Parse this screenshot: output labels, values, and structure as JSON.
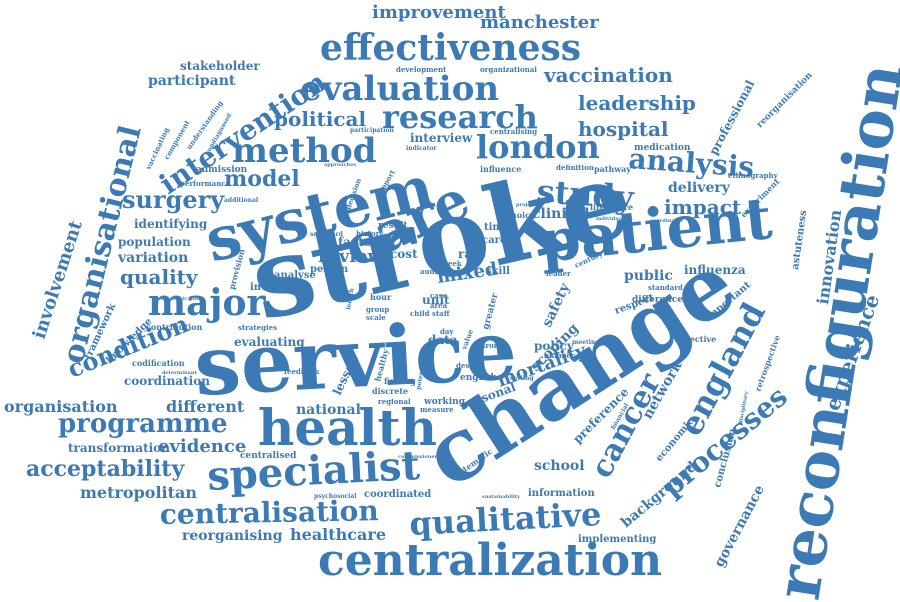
{
  "cloud": {
    "text_color": "#3c7ab5",
    "background": "#ffffff",
    "words": [
      {
        "text": "stroke",
        "size": 108
      },
      {
        "text": "change",
        "size": 86
      },
      {
        "text": "service",
        "size": 84
      },
      {
        "text": "reconfiguration",
        "size": 64
      },
      {
        "text": "system",
        "size": 60
      },
      {
        "text": "patient",
        "size": 60
      },
      {
        "text": "care",
        "size": 58
      },
      {
        "text": "health",
        "size": 50
      },
      {
        "text": "centralization",
        "size": 46
      },
      {
        "text": "specialist",
        "size": 42
      },
      {
        "text": "effectiveness",
        "size": 36
      },
      {
        "text": "evaluation",
        "size": 36
      },
      {
        "text": "research",
        "size": 34
      },
      {
        "text": "method",
        "size": 34
      },
      {
        "text": "london",
        "size": 34
      },
      {
        "text": "analysis",
        "size": 32
      },
      {
        "text": "study",
        "size": 34
      },
      {
        "text": "qualitative",
        "size": 34
      },
      {
        "text": "centralisation",
        "size": 32
      },
      {
        "text": "major",
        "size": 38
      },
      {
        "text": "england",
        "size": 34
      },
      {
        "text": "cancer",
        "size": 32
      },
      {
        "text": "processes",
        "size": 30
      },
      {
        "text": "organisational",
        "size": 32
      },
      {
        "text": "intervention",
        "size": 28
      },
      {
        "text": "programme",
        "size": 28
      },
      {
        "text": "condition",
        "size": 26
      },
      {
        "text": "surgery",
        "size": 26
      },
      {
        "text": "acceptability",
        "size": 22
      },
      {
        "text": "quality",
        "size": 20
      },
      {
        "text": "model",
        "size": 22
      },
      {
        "text": "impact",
        "size": 20
      },
      {
        "text": "political",
        "size": 20
      },
      {
        "text": "vaccination",
        "size": 20
      },
      {
        "text": "leadership",
        "size": 20
      },
      {
        "text": "hospital",
        "size": 20
      },
      {
        "text": "improvement",
        "size": 18
      },
      {
        "text": "manchester",
        "size": 18
      },
      {
        "text": "mortality",
        "size": 18
      },
      {
        "text": "experience",
        "size": 20
      },
      {
        "text": "innovation",
        "size": 16
      },
      {
        "text": "involvement",
        "size": 18
      },
      {
        "text": "evidence",
        "size": 18
      },
      {
        "text": "metropolitan",
        "size": 16
      },
      {
        "text": "healthcare",
        "size": 16
      },
      {
        "text": "organisation",
        "size": 16
      },
      {
        "text": "different",
        "size": 16
      },
      {
        "text": "review",
        "size": 18
      },
      {
        "text": "mixed",
        "size": 18
      },
      {
        "text": "public",
        "size": 14
      },
      {
        "text": "network",
        "size": 14
      },
      {
        "text": "governance",
        "size": 14
      },
      {
        "text": "background",
        "size": 14
      },
      {
        "text": "preference",
        "size": 12
      },
      {
        "text": "school",
        "size": 14
      },
      {
        "text": "influenza",
        "size": 12
      },
      {
        "text": "professional",
        "size": 12
      },
      {
        "text": "delivery",
        "size": 14
      },
      {
        "text": "clinical",
        "size": 14
      },
      {
        "text": "variation",
        "size": 14
      },
      {
        "text": "population",
        "size": 12
      },
      {
        "text": "identifying",
        "size": 12
      },
      {
        "text": "participant",
        "size": 14
      },
      {
        "text": "stakeholder",
        "size": 12
      },
      {
        "text": "reorganising",
        "size": 14
      },
      {
        "text": "transformation",
        "size": 12
      },
      {
        "text": "national",
        "size": 14
      },
      {
        "text": "lesson",
        "size": 14
      },
      {
        "text": "coordination",
        "size": 12
      },
      {
        "text": "evaluating",
        "size": 12
      },
      {
        "text": "safety",
        "size": 14
      },
      {
        "text": "scoping",
        "size": 14
      },
      {
        "text": "policy",
        "size": 12
      },
      {
        "text": "seasonal",
        "size": 12
      },
      {
        "text": "interview",
        "size": 12
      },
      {
        "text": "factor",
        "size": 12
      },
      {
        "text": "cost",
        "size": 12
      },
      {
        "text": "rare",
        "size": 12
      },
      {
        "text": "unit",
        "size": 12
      },
      {
        "text": "data",
        "size": 12
      },
      {
        "text": "person",
        "size": 10
      },
      {
        "text": "analyse",
        "size": 10
      },
      {
        "text": "involved",
        "size": 10
      },
      {
        "text": "knowledge",
        "size": 10
      },
      {
        "text": "framework",
        "size": 10
      },
      {
        "text": "medication",
        "size": 9
      },
      {
        "text": "admission",
        "size": 9
      },
      {
        "text": "respect",
        "size": 10
      },
      {
        "text": "astuteness",
        "size": 10
      },
      {
        "text": "important",
        "size": 10
      },
      {
        "text": "conclusion",
        "size": 10
      },
      {
        "text": "economic",
        "size": 10
      },
      {
        "text": "implementing",
        "size": 10
      },
      {
        "text": "coordinated",
        "size": 10
      },
      {
        "text": "information",
        "size": 10
      },
      {
        "text": "working",
        "size": 9
      },
      {
        "text": "english",
        "size": 9
      },
      {
        "text": "centralised",
        "size": 9
      },
      {
        "text": "codification",
        "size": 8
      },
      {
        "text": "contribution",
        "size": 8
      },
      {
        "text": "experiment",
        "size": 8
      },
      {
        "text": "ethnography",
        "size": 7
      },
      {
        "text": "retrospective",
        "size": 8
      },
      {
        "text": "reorganisation",
        "size": 9
      },
      {
        "text": "influence",
        "size": 8
      },
      {
        "text": "pathway",
        "size": 8
      },
      {
        "text": "definition",
        "size": 7
      },
      {
        "text": "literature",
        "size": 8
      },
      {
        "text": "choice",
        "size": 8
      },
      {
        "text": "carer",
        "size": 10
      },
      {
        "text": "skill",
        "size": 10
      },
      {
        "text": "time",
        "size": 10
      },
      {
        "text": "difference",
        "size": 9
      },
      {
        "text": "objective",
        "size": 8
      },
      {
        "text": "feedback",
        "size": 7
      },
      {
        "text": "strategies",
        "size": 7
      },
      {
        "text": "systematic",
        "size": 8
      },
      {
        "text": "performance",
        "size": 7
      },
      {
        "text": "component",
        "size": 7
      },
      {
        "text": "understanding",
        "size": 7
      },
      {
        "text": "development",
        "size": 7
      },
      {
        "text": "organizational",
        "size": 7
      },
      {
        "text": "participation",
        "size": 6
      },
      {
        "text": "indicator",
        "size": 6
      },
      {
        "text": "centralising",
        "size": 7
      },
      {
        "text": "finding",
        "size": 8
      },
      {
        "text": "discrete",
        "size": 8
      },
      {
        "text": "measure",
        "size": 7
      },
      {
        "text": "regional",
        "size": 7
      },
      {
        "text": "chronic",
        "size": 7
      },
      {
        "text": "standard",
        "size": 7
      },
      {
        "text": "century",
        "size": 7
      },
      {
        "text": "design",
        "size": 7
      },
      {
        "text": "number",
        "size": 7
      },
      {
        "text": "sustainability",
        "size": 5
      },
      {
        "text": "psychosocial",
        "size": 6
      },
      {
        "text": "determinant",
        "size": 5
      },
      {
        "text": "communication",
        "size": 5
      },
      {
        "text": "vaccinating",
        "size": 7
      },
      {
        "text": "undiagnosed",
        "size": 6
      },
      {
        "text": "approaches",
        "size": 5
      },
      {
        "text": "additional",
        "size": 6
      },
      {
        "text": "decision",
        "size": 7
      },
      {
        "text": "scorecard",
        "size": 6
      },
      {
        "text": "history",
        "size": 7
      },
      {
        "text": "result",
        "size": 9
      },
      {
        "text": "hour",
        "size": 8
      },
      {
        "text": "group",
        "size": 7
      },
      {
        "text": "scale",
        "size": 7
      },
      {
        "text": "staff",
        "size": 7
      },
      {
        "text": "child",
        "size": 7
      },
      {
        "text": "case",
        "size": 7
      },
      {
        "text": "area",
        "size": 7
      },
      {
        "text": "leader",
        "size": 7
      },
      {
        "text": "audit",
        "size": 7
      },
      {
        "text": "week",
        "size": 7
      },
      {
        "text": "day",
        "size": 7
      },
      {
        "text": "greater",
        "size": 9
      },
      {
        "text": "healthy",
        "size": 8
      },
      {
        "text": "provision",
        "size": 8
      },
      {
        "text": "length",
        "size": 6
      },
      {
        "text": "setting",
        "size": 6
      },
      {
        "text": "project",
        "size": 5
      },
      {
        "text": "commissioner",
        "size": 5
      },
      {
        "text": "coordinator",
        "size": 5
      },
      {
        "text": "individual",
        "size": 5
      },
      {
        "text": "disciplinary",
        "size": 5
      },
      {
        "text": "financial",
        "size": 6
      },
      {
        "text": "potential",
        "size": 6
      },
      {
        "text": "value",
        "size": 7
      },
      {
        "text": "support",
        "size": 7
      },
      {
        "text": "meeting",
        "size": 6
      }
    ]
  }
}
